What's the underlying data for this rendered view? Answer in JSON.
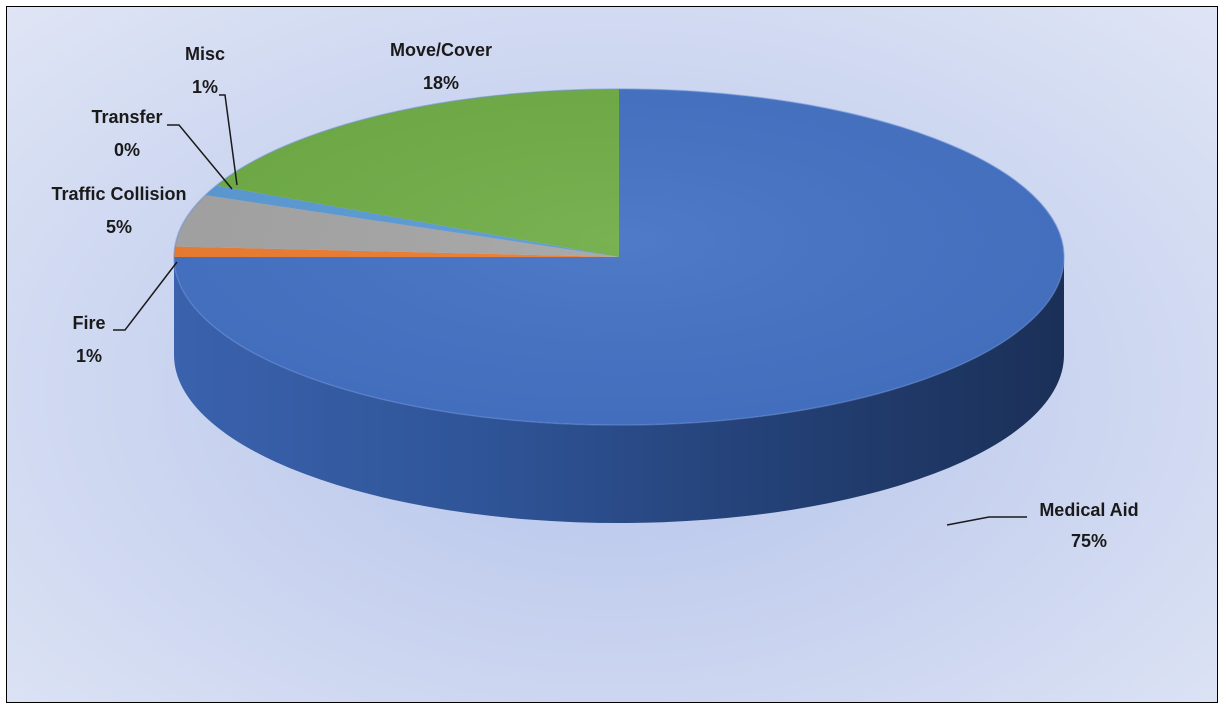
{
  "chart_data": {
    "type": "pie",
    "title": "",
    "slices": [
      {
        "name": "Medical Aid",
        "value": 75,
        "label": "75%",
        "color": "#4472C4"
      },
      {
        "name": "Fire",
        "value": 1,
        "label": "1%",
        "color": "#ED7D31"
      },
      {
        "name": "Traffic Collision",
        "value": 5,
        "label": "5%",
        "color": "#A5A5A5"
      },
      {
        "name": "Transfer",
        "value": 0,
        "label": "0%",
        "color": "#FFC000"
      },
      {
        "name": "Misc",
        "value": 1,
        "label": "1%",
        "color": "#5B9BD5"
      },
      {
        "name": "Move/Cover",
        "value": 18,
        "label": "18%",
        "color": "#70AD47"
      }
    ],
    "legend": "none",
    "style": "3d"
  }
}
